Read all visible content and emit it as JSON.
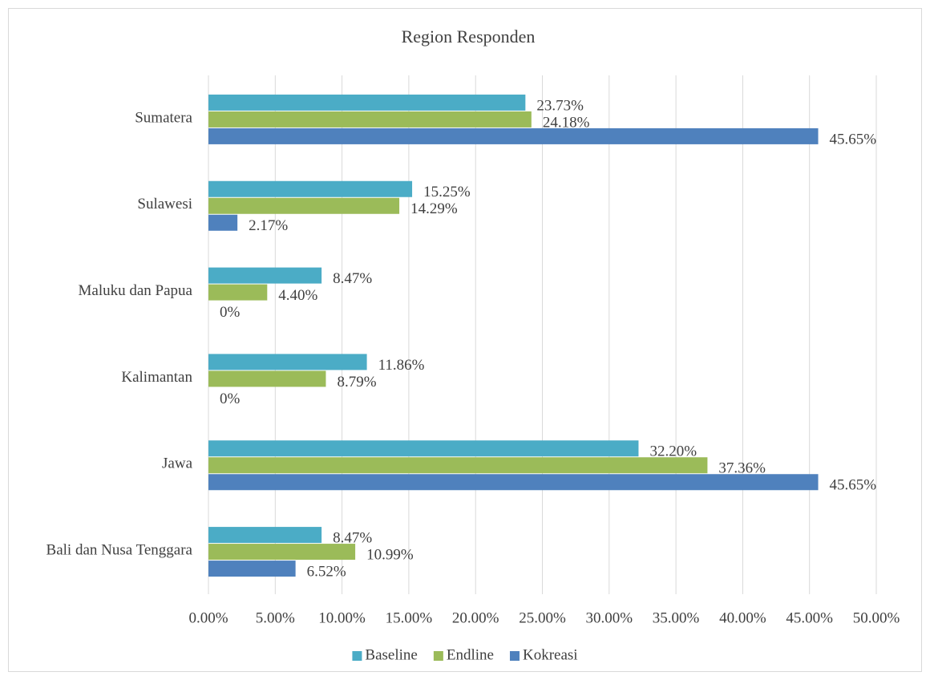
{
  "chart_data": {
    "type": "bar",
    "orientation": "horizontal",
    "title": "Region Responden",
    "categories": [
      "Sumatera",
      "Sulawesi",
      "Maluku dan Papua",
      "Kalimantan",
      "Jawa",
      "Bali dan Nusa Tenggara"
    ],
    "series": [
      {
        "name": "Baseline",
        "color": "#4bacc6",
        "values": [
          23.73,
          15.25,
          8.47,
          11.86,
          32.2,
          8.47
        ],
        "value_labels": [
          "23.73%",
          "15.25%",
          "8.47%",
          "11.86%",
          "32.20%",
          "8.47%"
        ]
      },
      {
        "name": "Endline",
        "color": "#9bbb59",
        "values": [
          24.18,
          14.29,
          4.4,
          8.79,
          37.36,
          10.99
        ],
        "value_labels": [
          "24.18%",
          "14.29%",
          "4.40%",
          "8.79%",
          "37.36%",
          "10.99%"
        ]
      },
      {
        "name": "Kokreasi",
        "color": "#4f81bd",
        "values": [
          45.65,
          2.17,
          0,
          0,
          45.65,
          6.52
        ],
        "value_labels": [
          "45.65%",
          "2.17%",
          "0%",
          "0%",
          "45.65%",
          "6.52%"
        ]
      }
    ],
    "xlim": [
      0,
      50
    ],
    "xticks": [
      {
        "value": 0,
        "label": "0.00%"
      },
      {
        "value": 5,
        "label": "5.00%"
      },
      {
        "value": 10,
        "label": "10.00%"
      },
      {
        "value": 15,
        "label": "15.00%"
      },
      {
        "value": 20,
        "label": "20.00%"
      },
      {
        "value": 25,
        "label": "25.00%"
      },
      {
        "value": 30,
        "label": "30.00%"
      },
      {
        "value": 35,
        "label": "35.00%"
      },
      {
        "value": 40,
        "label": "40.00%"
      },
      {
        "value": 45,
        "label": "45.00%"
      },
      {
        "value": 50,
        "label": "50.00%"
      }
    ],
    "grid": true,
    "legend": "bottom"
  }
}
